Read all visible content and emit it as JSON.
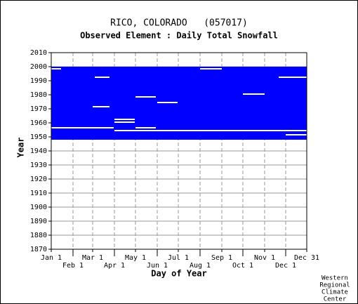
{
  "chart_data": {
    "type": "coverage",
    "title": "RICO, COLORADO   (057017)",
    "subtitle": "Observed Element : Daily Total Snowfall",
    "x_label": "Day of Year",
    "y_label": "Year",
    "credit": [
      "Western",
      "Regional",
      "Climate",
      "Center"
    ],
    "color": "#0000ff",
    "grid": true,
    "xlim": [
      1,
      365
    ],
    "xticks": [
      {
        "value": 1,
        "label": "Jan 1"
      },
      {
        "value": 32,
        "label": "Feb 1"
      },
      {
        "value": 60,
        "label": "Mar 1"
      },
      {
        "value": 91,
        "label": "Apr 1"
      },
      {
        "value": 121,
        "label": "May 1"
      },
      {
        "value": 152,
        "label": "Jun 1"
      },
      {
        "value": 182,
        "label": "Jul 1"
      },
      {
        "value": 213,
        "label": "Aug 1"
      },
      {
        "value": 244,
        "label": "Sep 1"
      },
      {
        "value": 274,
        "label": "Oct 1"
      },
      {
        "value": 305,
        "label": "Nov 1"
      },
      {
        "value": 335,
        "label": "Dec 1"
      },
      {
        "value": 365,
        "label": "Dec 31"
      }
    ],
    "ylim": [
      1870,
      2010
    ],
    "yticks": [
      1870,
      1880,
      1890,
      1900,
      1910,
      1920,
      1930,
      1940,
      1950,
      1960,
      1970,
      1980,
      1990,
      2000,
      2010
    ],
    "coverage": {
      "start_year": 1948,
      "end_year": 2000
    },
    "gaps": [
      {
        "year": 1999,
        "start_day": 1,
        "end_day": 15
      },
      {
        "year": 1999,
        "start_day": 213,
        "end_day": 244
      },
      {
        "year": 1993,
        "start_day": 63,
        "end_day": 84
      },
      {
        "year": 1993,
        "start_day": 325,
        "end_day": 365
      },
      {
        "year": 1981,
        "start_day": 274,
        "end_day": 305
      },
      {
        "year": 1979,
        "start_day": 121,
        "end_day": 150
      },
      {
        "year": 1975,
        "start_day": 152,
        "end_day": 181
      },
      {
        "year": 1972,
        "start_day": 60,
        "end_day": 84
      },
      {
        "year": 1963,
        "start_day": 91,
        "end_day": 120
      },
      {
        "year": 1961,
        "start_day": 91,
        "end_day": 120
      },
      {
        "year": 1957,
        "start_day": 1,
        "end_day": 90
      },
      {
        "year": 1957,
        "start_day": 121,
        "end_day": 150
      },
      {
        "year": 1955,
        "start_day": 91,
        "end_day": 365
      },
      {
        "year": 1952,
        "start_day": 335,
        "end_day": 365
      }
    ]
  }
}
